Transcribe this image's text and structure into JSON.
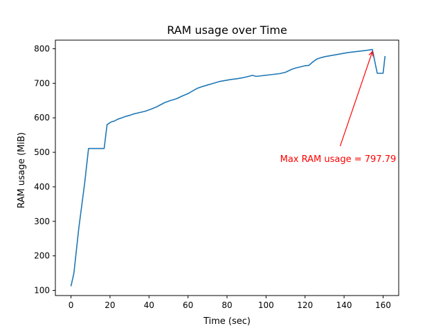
{
  "chart_data": {
    "type": "line",
    "title": "RAM usage over Time",
    "xlabel": "Time (sec)",
    "ylabel": "RAM usage (MiB)",
    "xlim": [
      -8,
      168
    ],
    "ylim": [
      85,
      825
    ],
    "xticks": [
      0,
      20,
      40,
      60,
      80,
      100,
      120,
      140,
      160
    ],
    "yticks": [
      100,
      200,
      300,
      400,
      500,
      600,
      700,
      800
    ],
    "grid": false,
    "line_color": "#1f77b4",
    "annotation": {
      "text": "Max RAM usage = 797.79",
      "value": 797.79,
      "point": [
        154.5,
        797.79
      ],
      "text_anchor_point": [
        138,
        502
      ],
      "color": "#ff0000"
    },
    "series": [
      {
        "x": [
          0,
          1.5,
          4,
          7,
          9,
          12,
          17,
          18.5,
          20,
          21,
          22,
          24,
          26,
          28,
          30,
          32,
          35,
          38,
          41,
          44,
          46,
          48,
          51,
          54,
          57,
          60,
          63,
          65,
          67,
          70,
          73,
          76,
          79,
          82,
          85,
          88,
          91,
          93,
          95,
          98,
          101,
          104,
          107,
          110,
          113,
          115,
          118,
          120,
          122,
          124,
          126,
          128,
          130,
          133,
          136,
          139,
          142,
          145,
          148,
          151,
          154.5,
          157,
          160,
          161
        ],
        "y": [
          112,
          150,
          280,
          410,
          511,
          511,
          511,
          580,
          586,
          589,
          590,
          596,
          600,
          604,
          607,
          611,
          615,
          619,
          625,
          632,
          638,
          644,
          650,
          655,
          663,
          670,
          680,
          686,
          690,
          695,
          700,
          705,
          708,
          711,
          713,
          716,
          720,
          723,
          720,
          722,
          724,
          726,
          728,
          732,
          740,
          744,
          748,
          751,
          752,
          762,
          770,
          774,
          777,
          780,
          783,
          786,
          789,
          791,
          793,
          795,
          797.79,
          729,
          729,
          779
        ]
      }
    ]
  }
}
